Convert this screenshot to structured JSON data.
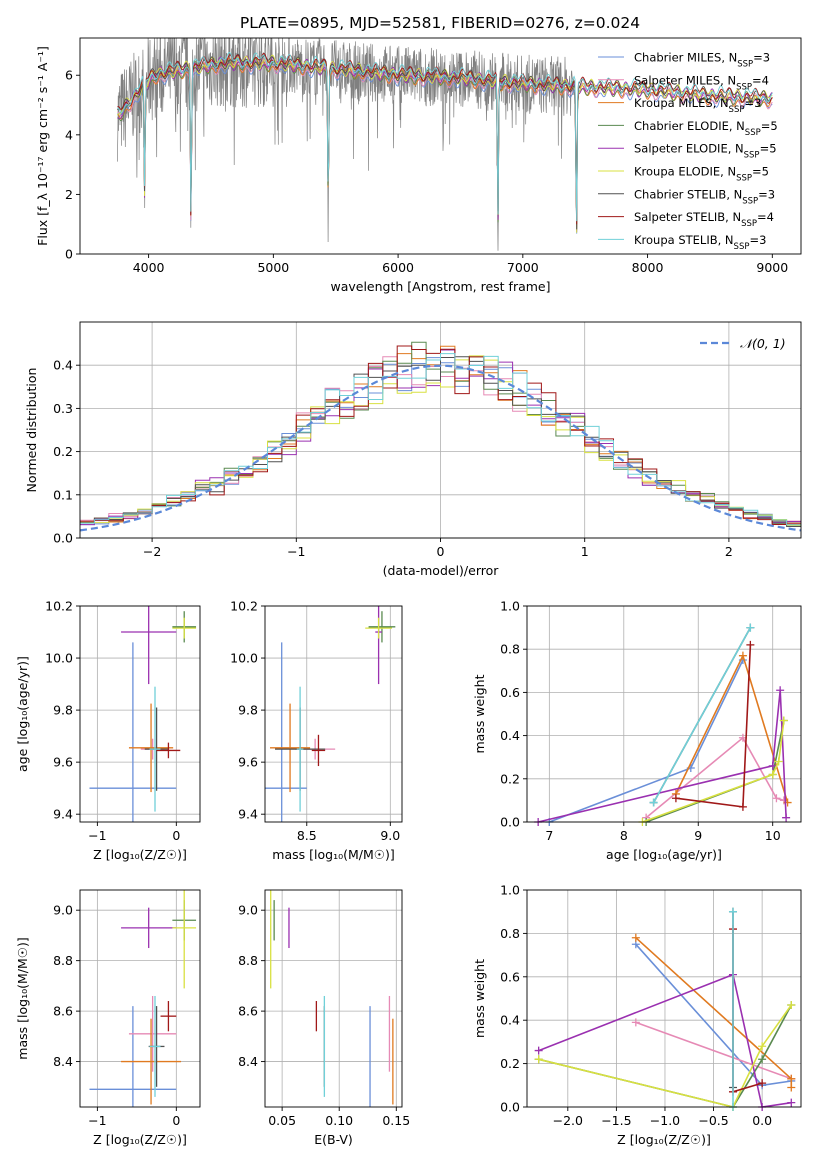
{
  "figure_title": "PLATE=0895, MJD=52581, FIBERID=0276, z=0.024",
  "colors": {
    "Chabrier MILES": "#6a8fd8",
    "Salpeter MILES": "#e68ab5",
    "Kroupa MILES": "#e07a20",
    "Chabrier ELODIE": "#5a8a50",
    "Salpeter ELODIE": "#9a30b0",
    "Kroupa ELODIE": "#d8e040",
    "Chabrier STELIB": "#505050",
    "Salpeter STELIB": "#a01818",
    "Kroupa STELIB": "#70d0d8",
    "data": "#808080"
  },
  "chart_data": [
    {
      "id": "spectrum",
      "type": "line",
      "title": "PLATE=0895, MJD=52581, FIBERID=0276, z=0.024",
      "xlabel": "wavelength [Angstrom, rest frame]",
      "ylabel": "Flux [f_λ 10⁻¹⁷ erg cm⁻² s⁻¹ A⁻¹]",
      "xlim": [
        3450,
        9230
      ],
      "ylim": [
        0,
        7.25
      ],
      "xticks": [
        "4000",
        "5000",
        "6000",
        "7000",
        "8000",
        "9000"
      ],
      "yticks": [
        "0",
        "2",
        "4",
        "6"
      ],
      "legend_position": "top-right",
      "legend": [
        {
          "prefix": "Chabrier MILES, N",
          "sub": "SSP",
          "suffix": "=3"
        },
        {
          "prefix": "Salpeter MILES, N",
          "sub": "SSP",
          "suffix": "=4"
        },
        {
          "prefix": "Kroupa MILES, N",
          "sub": "SSP",
          "suffix": "=3"
        },
        {
          "prefix": "Chabrier ELODIE, N",
          "sub": "SSP",
          "suffix": "=5"
        },
        {
          "prefix": "Salpeter ELODIE, N",
          "sub": "SSP",
          "suffix": "=5"
        },
        {
          "prefix": "Kroupa ELODIE, N",
          "sub": "SSP",
          "suffix": "=5"
        },
        {
          "prefix": "Chabrier STELIB, N",
          "sub": "SSP",
          "suffix": "=3"
        },
        {
          "prefix": "Salpeter STELIB, N",
          "sub": "SSP",
          "suffix": "=4"
        },
        {
          "prefix": "Kroupa STELIB, N",
          "sub": "SSP",
          "suffix": "=3"
        }
      ],
      "continuum": [
        [
          3750,
          4.6
        ],
        [
          3850,
          5.1
        ],
        [
          3950,
          5.6
        ],
        [
          4050,
          6.0
        ],
        [
          4300,
          6.2
        ],
        [
          4600,
          6.4
        ],
        [
          5000,
          6.4
        ],
        [
          5500,
          6.2
        ],
        [
          6000,
          6.0
        ],
        [
          6500,
          5.9
        ],
        [
          7000,
          5.7
        ],
        [
          7500,
          5.6
        ],
        [
          8000,
          5.5
        ],
        [
          8500,
          5.3
        ],
        [
          9000,
          5.2
        ]
      ],
      "absorption_lines": [
        {
          "wavelength": 3968,
          "depth": 4.0
        },
        {
          "wavelength": 4340,
          "depth": 5.6
        },
        {
          "wavelength": 5440,
          "depth": 5.0
        },
        {
          "wavelength": 6800,
          "depth": 5.4
        },
        {
          "wavelength": 7430,
          "depth": 5.6
        }
      ],
      "data_range": [
        3750,
        7430
      ],
      "model_range": [
        3750,
        9000
      ]
    },
    {
      "id": "residuals",
      "type": "step",
      "xlabel": "(data-model)/error",
      "ylabel": "Normed distribution",
      "xlim": [
        -2.5,
        2.5
      ],
      "ylim": [
        0,
        0.5
      ],
      "xticks": [
        "−2",
        "−1",
        "0",
        "1",
        "2"
      ],
      "yticks": [
        "0.0",
        "0.1",
        "0.2",
        "0.3",
        "0.4"
      ],
      "bin_width": 0.1,
      "legend": [
        {
          "label": "𝒩(0, 1)",
          "style": "dashed"
        }
      ],
      "legend_position": "top-right"
    },
    {
      "id": "age_vs_Z",
      "type": "errorbar",
      "xlabel": "Z [log₁₀(Z/Z☉)]",
      "ylabel": "age  [log₁₀(age/yr)]",
      "xlim": [
        -1.22,
        0.3
      ],
      "ylim": [
        9.37,
        10.2
      ],
      "xticks": [
        "−1",
        "0"
      ],
      "yticks": [
        "9.4",
        "9.6",
        "9.8",
        "10.0",
        "10.2"
      ],
      "points": [
        {
          "model": "Chabrier MILES",
          "x": -0.55,
          "xerr": 0.55,
          "y": 9.5,
          "yerr": 0.56
        },
        {
          "model": "Salpeter MILES",
          "x": -0.3,
          "xerr": 0.15,
          "y": 9.65,
          "yerr": 0.04
        },
        {
          "model": "Kroupa MILES",
          "x": -0.32,
          "xerr": 0.28,
          "y": 9.655,
          "yerr": 0.17
        },
        {
          "model": "Chabrier ELODIE",
          "x": 0.1,
          "xerr": 0.15,
          "y": 10.12,
          "yerr": 0.06
        },
        {
          "model": "Salpeter ELODIE",
          "x": -0.35,
          "xerr": 0.35,
          "y": 10.1,
          "yerr": 0.2
        },
        {
          "model": "Kroupa ELODIE",
          "x": 0.1,
          "xerr": 0.15,
          "y": 10.115,
          "yerr": 0.04
        },
        {
          "model": "Chabrier STELIB",
          "x": -0.25,
          "xerr": 0.15,
          "y": 9.65,
          "yerr": 0.16
        },
        {
          "model": "Salpeter STELIB",
          "x": -0.1,
          "xerr": 0.15,
          "y": 9.645,
          "yerr": 0.03
        },
        {
          "model": "Kroupa STELIB",
          "x": -0.27,
          "xerr": 0.07,
          "y": 9.65,
          "yerr": 0.24
        }
      ]
    },
    {
      "id": "age_vs_mass",
      "type": "errorbar",
      "xlabel": "mass [log₁₀(M/M☉)]",
      "ylabel": "",
      "xlim": [
        8.25,
        9.07
      ],
      "ylim": [
        9.37,
        10.2
      ],
      "xticks": [
        "8.5",
        "9.0"
      ],
      "yticks": [
        "9.4",
        "9.6",
        "9.8",
        "10.0",
        "10.2"
      ],
      "points": [
        {
          "model": "Chabrier MILES",
          "x": 8.35,
          "xerr": 0.15,
          "y": 9.5,
          "yerr": 0.56
        },
        {
          "model": "Salpeter MILES",
          "x": 8.55,
          "xerr": 0.12,
          "y": 9.65,
          "yerr": 0.04
        },
        {
          "model": "Kroupa MILES",
          "x": 8.4,
          "xerr": 0.12,
          "y": 9.655,
          "yerr": 0.17
        },
        {
          "model": "Chabrier ELODIE",
          "x": 8.95,
          "xerr": 0.08,
          "y": 10.12,
          "yerr": 0.06
        },
        {
          "model": "Salpeter ELODIE",
          "x": 8.93,
          "xerr": 0.02,
          "y": 10.1,
          "yerr": 0.2
        },
        {
          "model": "Kroupa ELODIE",
          "x": 8.93,
          "xerr": 0.08,
          "y": 10.115,
          "yerr": 0.04
        },
        {
          "model": "Chabrier STELIB",
          "x": 8.46,
          "xerr": 0.15,
          "y": 9.65,
          "yerr": 0.16
        },
        {
          "model": "Salpeter STELIB",
          "x": 8.57,
          "xerr": 0.04,
          "y": 9.645,
          "yerr": 0.06
        },
        {
          "model": "Kroupa STELIB",
          "x": 8.46,
          "xerr": 0.02,
          "y": 9.65,
          "yerr": 0.24
        }
      ]
    },
    {
      "id": "weight_vs_age",
      "type": "line",
      "xlabel": "age  [log₁₀(age/yr)]",
      "ylabel": "mass weight",
      "xlim": [
        6.7,
        10.38
      ],
      "ylim": [
        0,
        1
      ],
      "xticks": [
        "7",
        "8",
        "9",
        "10"
      ],
      "yticks": [
        "0.0",
        "0.2",
        "0.4",
        "0.6",
        "0.8",
        "1.0"
      ],
      "series": [
        {
          "model": "Chabrier MILES",
          "points": [
            [
              7.0,
              0.0
            ],
            [
              8.9,
              0.25
            ],
            [
              9.6,
              0.75
            ]
          ]
        },
        {
          "model": "Salpeter MILES",
          "points": [
            [
              8.3,
              0.02
            ],
            [
              9.6,
              0.39
            ],
            [
              10.05,
              0.11
            ],
            [
              10.15,
              0.1
            ]
          ]
        },
        {
          "model": "Kroupa MILES",
          "points": [
            [
              8.7,
              0.13
            ],
            [
              9.6,
              0.77
            ],
            [
              10.2,
              0.09
            ]
          ]
        },
        {
          "model": "Chabrier ELODIE",
          "points": [
            [
              8.3,
              0.0
            ],
            [
              10.0,
              0.22
            ],
            [
              10.15,
              0.47
            ]
          ]
        },
        {
          "model": "Salpeter ELODIE",
          "points": [
            [
              6.85,
              0.0
            ],
            [
              10.0,
              0.26
            ],
            [
              10.1,
              0.61
            ],
            [
              10.18,
              0.02
            ]
          ]
        },
        {
          "model": "Kroupa ELODIE",
          "points": [
            [
              8.25,
              0.0
            ],
            [
              10.0,
              0.22
            ],
            [
              10.08,
              0.28
            ],
            [
              10.15,
              0.47
            ]
          ]
        },
        {
          "model": "Chabrier STELIB",
          "points": [
            [
              8.4,
              0.09
            ],
            [
              9.7,
              0.9
            ]
          ]
        },
        {
          "model": "Salpeter STELIB",
          "points": [
            [
              8.7,
              0.11
            ],
            [
              9.6,
              0.07
            ],
            [
              9.7,
              0.82
            ]
          ]
        },
        {
          "model": "Kroupa STELIB",
          "points": [
            [
              8.4,
              0.09
            ],
            [
              9.7,
              0.9
            ]
          ]
        }
      ]
    },
    {
      "id": "mass_vs_Z",
      "type": "errorbar",
      "xlabel": "Z [log₁₀(Z/Z☉)]",
      "ylabel": "mass [log₁₀(M/M☉)]",
      "xlim": [
        -1.22,
        0.3
      ],
      "ylim": [
        8.22,
        9.08
      ],
      "xticks": [
        "−1",
        "0"
      ],
      "yticks": [
        "8.4",
        "8.6",
        "8.8",
        "9.0"
      ],
      "points": [
        {
          "model": "Chabrier MILES",
          "x": -0.55,
          "xerr": 0.55,
          "y": 8.29,
          "yerr": 0.33
        },
        {
          "model": "Salpeter MILES",
          "x": -0.3,
          "xerr": 0.3,
          "y": 8.51,
          "yerr": 0.15
        },
        {
          "model": "Kroupa MILES",
          "x": -0.32,
          "xerr": 0.38,
          "y": 8.4,
          "yerr": 0.17
        },
        {
          "model": "Chabrier ELODIE",
          "x": 0.1,
          "xerr": 0.15,
          "y": 8.96,
          "yerr": 0.08
        },
        {
          "model": "Salpeter ELODIE",
          "x": -0.35,
          "xerr": 0.35,
          "y": 8.93,
          "yerr": 0.08
        },
        {
          "model": "Kroupa ELODIE",
          "x": 0.1,
          "xerr": 0.15,
          "y": 8.93,
          "yerr": 0.24
        },
        {
          "model": "Chabrier STELIB",
          "x": -0.25,
          "xerr": 0.1,
          "y": 8.46,
          "yerr": 0.16
        },
        {
          "model": "Salpeter STELIB",
          "x": -0.1,
          "xerr": 0.1,
          "y": 8.58,
          "yerr": 0.06
        },
        {
          "model": "Kroupa STELIB",
          "x": -0.27,
          "xerr": 0.07,
          "y": 8.46,
          "yerr": 0.2
        }
      ]
    },
    {
      "id": "mass_vs_ebv",
      "type": "errorbar",
      "xlabel": "E(B-V)",
      "ylabel": "",
      "xlim": [
        0.035,
        0.155
      ],
      "ylim": [
        8.22,
        9.08
      ],
      "xticks": [
        "0.05",
        "0.10",
        "0.15"
      ],
      "yticks": [
        "8.4",
        "8.6",
        "8.8",
        "9.0"
      ],
      "points": [
        {
          "model": "Chabrier MILES",
          "x": 0.127,
          "y": 8.29,
          "yerr": 0.33
        },
        {
          "model": "Salpeter MILES",
          "x": 0.144,
          "y": 8.51,
          "yerr": 0.15
        },
        {
          "model": "Kroupa MILES",
          "x": 0.147,
          "y": 8.4,
          "yerr": 0.17
        },
        {
          "model": "Chabrier ELODIE",
          "x": 0.043,
          "y": 8.96,
          "yerr": 0.08
        },
        {
          "model": "Salpeter ELODIE",
          "x": 0.056,
          "y": 8.93,
          "yerr": 0.08
        },
        {
          "model": "Kroupa ELODIE",
          "x": 0.04,
          "y": 8.93,
          "yerr": 0.24
        },
        {
          "model": "Chabrier STELIB",
          "x": 0.087,
          "y": 8.46,
          "yerr": 0.16
        },
        {
          "model": "Salpeter STELIB",
          "x": 0.08,
          "y": 8.58,
          "yerr": 0.06
        },
        {
          "model": "Kroupa STELIB",
          "x": 0.087,
          "y": 8.46,
          "yerr": 0.2
        }
      ]
    },
    {
      "id": "weight_vs_Z",
      "type": "line",
      "xlabel": "Z [log₁₀(Z/Z☉)]",
      "ylabel": "mass weight",
      "xlim": [
        -2.42,
        0.4
      ],
      "ylim": [
        0,
        1
      ],
      "xticks": [
        "−2.0",
        "−1.5",
        "−1.0",
        "−0.5",
        "0.0"
      ],
      "yticks": [
        "0.0",
        "0.2",
        "0.4",
        "0.6",
        "0.8",
        "1.0"
      ],
      "series": [
        {
          "model": "Chabrier MILES",
          "points": [
            [
              -1.3,
              0.75
            ],
            [
              0.0,
              0.1
            ],
            [
              0.3,
              0.12
            ]
          ]
        },
        {
          "model": "Salpeter MILES",
          "points": [
            [
              -1.3,
              0.39
            ],
            [
              0.3,
              0.13
            ]
          ]
        },
        {
          "model": "Kroupa MILES",
          "points": [
            [
              -1.3,
              0.78
            ],
            [
              0.3,
              0.13
            ],
            [
              0.3,
              0.09
            ]
          ]
        },
        {
          "model": "Chabrier ELODIE",
          "points": [
            [
              -2.3,
              0.22
            ],
            [
              -0.3,
              0.0
            ],
            [
              0.0,
              0.22
            ],
            [
              0.3,
              0.47
            ]
          ]
        },
        {
          "model": "Salpeter ELODIE",
          "points": [
            [
              -2.3,
              0.26
            ],
            [
              -0.3,
              0.61
            ],
            [
              0.0,
              0.0
            ],
            [
              0.3,
              0.02
            ]
          ]
        },
        {
          "model": "Kroupa ELODIE",
          "points": [
            [
              -2.3,
              0.22
            ],
            [
              -0.3,
              0.0
            ],
            [
              0.0,
              0.28
            ],
            [
              0.3,
              0.47
            ]
          ]
        },
        {
          "model": "Chabrier STELIB",
          "points": [
            [
              -0.3,
              0.9
            ],
            [
              -0.3,
              0.09
            ]
          ]
        },
        {
          "model": "Salpeter STELIB",
          "points": [
            [
              -0.3,
              0.82
            ],
            [
              -0.3,
              0.07
            ],
            [
              0.0,
              0.11
            ]
          ]
        },
        {
          "model": "Kroupa STELIB",
          "points": [
            [
              -0.3,
              0.9
            ],
            [
              -0.3,
              0.0
            ]
          ]
        }
      ]
    }
  ]
}
